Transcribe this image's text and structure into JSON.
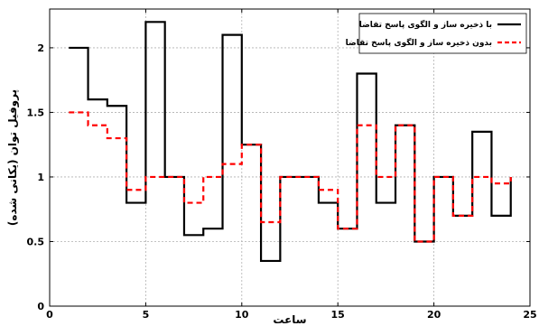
{
  "chart_data": {
    "type": "line",
    "step": "post",
    "xlabel": "ساعت",
    "ylabel": "پروفیل توان (یکانی شده)",
    "xlim": [
      0,
      25
    ],
    "ylim": [
      0,
      2.3
    ],
    "xticks": [
      0,
      5,
      10,
      15,
      20,
      25
    ],
    "yticks": [
      0,
      0.5,
      1,
      1.5,
      2
    ],
    "grid": true,
    "legend_position": "top-right",
    "x": [
      1,
      2,
      3,
      4,
      5,
      6,
      7,
      8,
      9,
      10,
      11,
      12,
      13,
      14,
      15,
      16,
      17,
      18,
      19,
      20,
      21,
      22,
      23,
      24
    ],
    "series": [
      {
        "name": "با ذخیره ساز و الگوی  پاسخ تقاضا",
        "color": "#000000",
        "style": "solid",
        "values": [
          2.0,
          1.6,
          1.55,
          0.8,
          2.2,
          1.0,
          0.55,
          0.6,
          2.1,
          1.25,
          0.35,
          1.0,
          1.0,
          0.8,
          0.6,
          1.8,
          0.8,
          1.4,
          0.5,
          1.0,
          0.7,
          1.35,
          0.7,
          1.0
        ]
      },
      {
        "name": "بدون ذخیره ساز و الگوی پاسخ تقاضا",
        "color": "#ff0000",
        "style": "dashed",
        "values": [
          1.5,
          1.4,
          1.3,
          0.9,
          1.0,
          1.0,
          0.8,
          1.0,
          1.1,
          1.25,
          0.65,
          1.0,
          1.0,
          0.9,
          0.6,
          1.4,
          1.0,
          1.4,
          0.5,
          1.0,
          0.7,
          1.0,
          0.95,
          1.0
        ]
      }
    ]
  }
}
